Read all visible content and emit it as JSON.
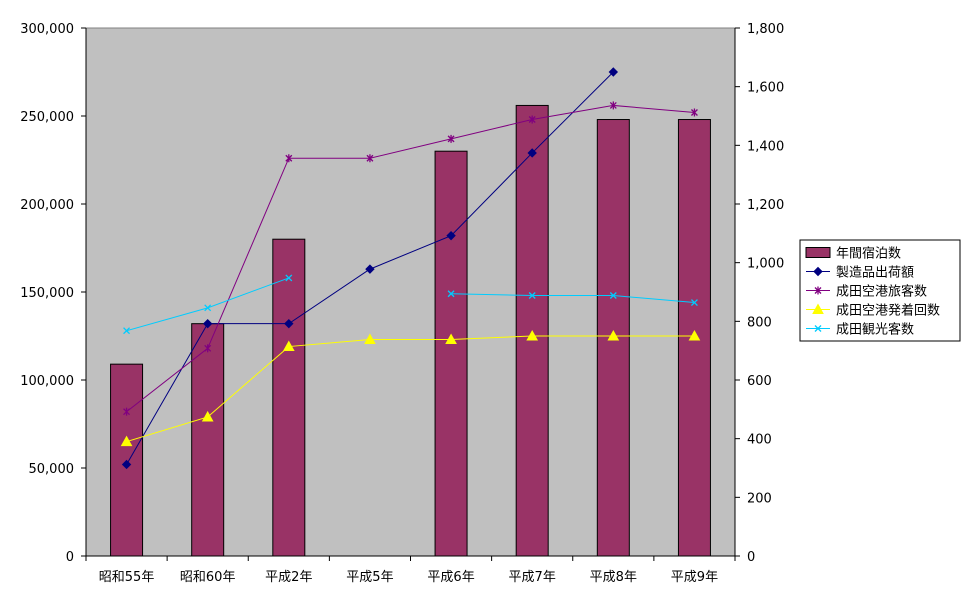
{
  "chart_data": {
    "type": "bar",
    "categories": [
      "昭和55年",
      "昭和60年",
      "平成2年",
      "平成5年",
      "平成6年",
      "平成7年",
      "平成8年",
      "平成9年"
    ],
    "left_axis": {
      "range": [
        0,
        300000
      ],
      "ticks": [
        0,
        50000,
        100000,
        150000,
        200000,
        250000,
        300000
      ],
      "tick_labels": [
        "0",
        "50,000",
        "100,000",
        "150,000",
        "200,000",
        "250,000",
        "300,000"
      ]
    },
    "right_axis": {
      "range": [
        0,
        1800
      ],
      "ticks": [
        0,
        200,
        400,
        600,
        800,
        1000,
        1200,
        1400,
        1600,
        1800
      ],
      "tick_labels": [
        "0",
        "200",
        "400",
        "600",
        "800",
        "1,000",
        "1,200",
        "1,400",
        "1,600",
        "1,800"
      ]
    },
    "plot_background": "#c0c0c0",
    "legend_position": "right",
    "series": [
      {
        "name": "年間宿泊数",
        "kind": "bar",
        "axis": "left",
        "color": "#993366",
        "values": [
          109000,
          132000,
          180000,
          null,
          230000,
          256000,
          248000,
          248000
        ]
      },
      {
        "name": "製造品出荷額",
        "kind": "line",
        "axis": "left",
        "color": "#000080",
        "marker": "diamond",
        "values": [
          52000,
          132000,
          132000,
          163000,
          182000,
          229000,
          275000,
          null
        ]
      },
      {
        "name": "成田空港旅客数",
        "kind": "line",
        "axis": "left",
        "color": "#800080",
        "marker": "star",
        "values": [
          82000,
          118000,
          226000,
          226000,
          237000,
          248000,
          256000,
          252000
        ]
      },
      {
        "name": "成田空港発着回数",
        "kind": "line",
        "axis": "left",
        "color": "#ffff00",
        "marker": "triangle",
        "values": [
          65000,
          79000,
          119000,
          123000,
          123000,
          125000,
          125000,
          125000
        ]
      },
      {
        "name": "成田観光客数",
        "kind": "line",
        "axis": "left",
        "color": "#00ccff",
        "marker": "x",
        "values": [
          128000,
          141000,
          158000,
          null,
          149000,
          148000,
          148000,
          144000
        ]
      }
    ]
  }
}
